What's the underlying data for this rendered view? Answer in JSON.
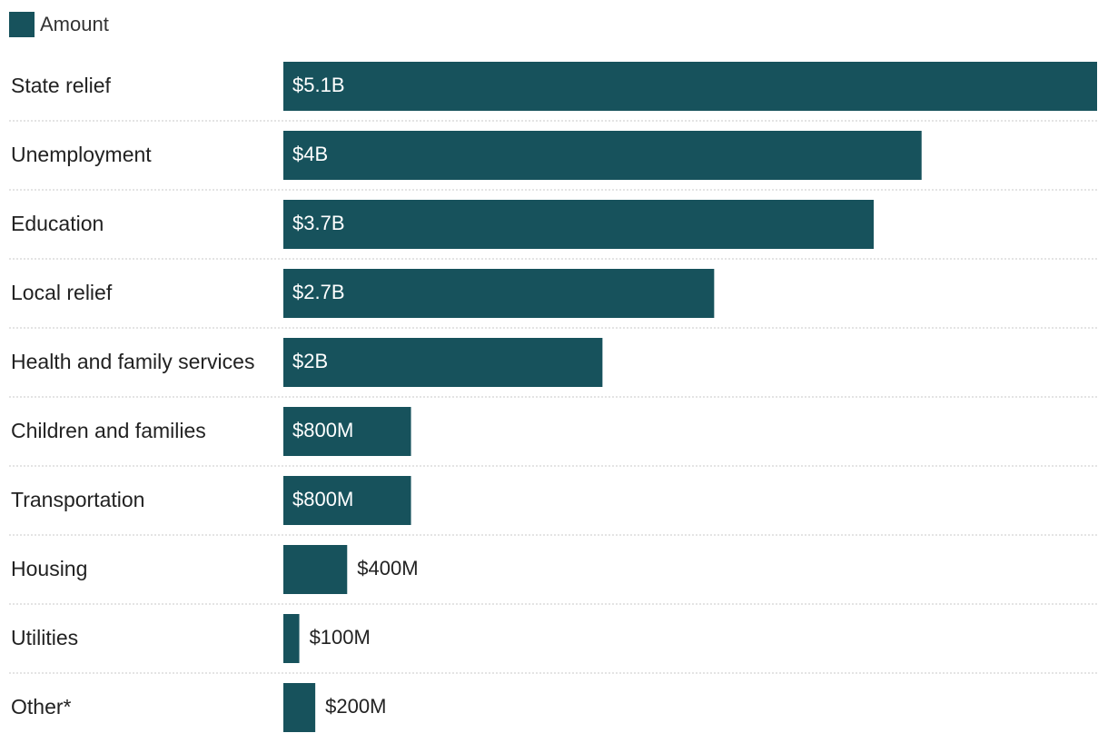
{
  "legend": {
    "label": "Amount",
    "color": "#17525c"
  },
  "chart_data": {
    "type": "bar",
    "orientation": "horizontal",
    "series": [
      {
        "name": "Amount",
        "color": "#17525c"
      }
    ],
    "categories": [
      "State relief",
      "Unemployment",
      "Education",
      "Local relief",
      "Health and family services",
      "Children and families",
      "Transportation",
      "Housing",
      "Utilities",
      "Other*"
    ],
    "values": [
      5.1,
      4.0,
      3.7,
      2.7,
      2.0,
      0.8,
      0.8,
      0.4,
      0.1,
      0.2
    ],
    "value_labels": [
      "$5.1B",
      "$4B",
      "$3.7B",
      "$2.7B",
      "$2B",
      "$800M",
      "$800M",
      "$400M",
      "$100M",
      "$200M"
    ],
    "unit": "billions USD",
    "xlim": [
      0,
      5.1
    ],
    "grid": false,
    "legend_position": "top-left"
  }
}
